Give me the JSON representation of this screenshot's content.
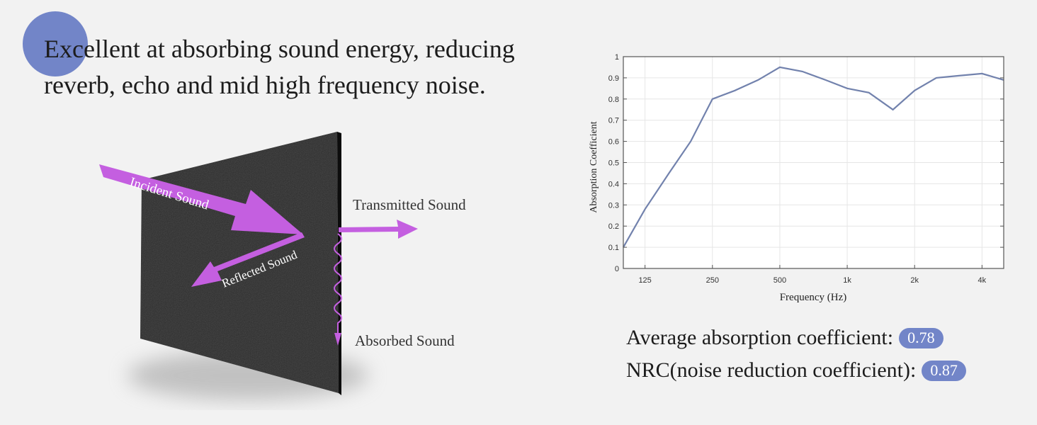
{
  "headline": {
    "line1": "Excellent at absorbing sound energy, reducing",
    "line2": "reverb, echo and mid high frequency noise."
  },
  "diagram": {
    "incident": "Incident Sound",
    "reflected": "Reflected Sound",
    "transmitted": "Transmitted Sound",
    "absorbed": "Absorbed Sound"
  },
  "stats": {
    "average_label": "Average absorption coefficient:",
    "average_value": "0.78",
    "nrc_label": "NRC(noise reduction coefficient):",
    "nrc_value": "0.87"
  },
  "colors": {
    "accent": "#7285c8",
    "arrow": "#c45fe0",
    "line": "#7282ad",
    "panel": "#2b2b2b"
  },
  "chart_data": {
    "type": "line",
    "xlabel": "Frequency (Hz)",
    "ylabel": "Absorption Coefficient",
    "x_scale": "log",
    "xlim": [
      100,
      5000
    ],
    "ylim": [
      0,
      1
    ],
    "grid": true,
    "x_ticks": [
      {
        "value": 125,
        "label": "125"
      },
      {
        "value": 250,
        "label": "250"
      },
      {
        "value": 500,
        "label": "500"
      },
      {
        "value": 1000,
        "label": "1k"
      },
      {
        "value": 2000,
        "label": "2k"
      },
      {
        "value": 4000,
        "label": "4k"
      }
    ],
    "y_ticks": [
      "0",
      "0.1",
      "0.2",
      "0.3",
      "0.4",
      "0.5",
      "0.6",
      "0.7",
      "0.8",
      "0.9",
      "1"
    ],
    "series": [
      {
        "x": [
          100,
          125,
          160,
          200,
          250,
          315,
          400,
          500,
          630,
          800,
          1000,
          1250,
          1600,
          2000,
          2500,
          3150,
          4000,
          5000
        ],
        "y": [
          0.1,
          0.28,
          0.45,
          0.6,
          0.8,
          0.84,
          0.89,
          0.95,
          0.93,
          0.89,
          0.85,
          0.83,
          0.75,
          0.84,
          0.9,
          0.91,
          0.92,
          0.89
        ]
      }
    ]
  }
}
